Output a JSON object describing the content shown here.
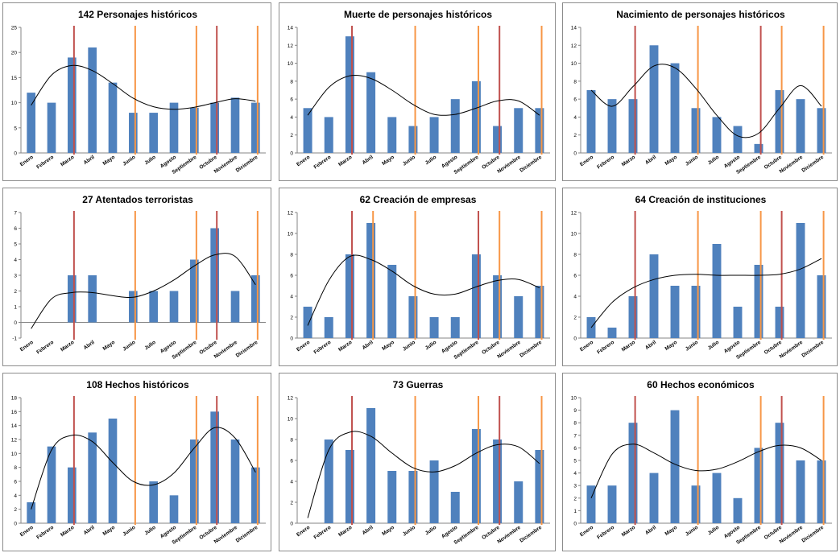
{
  "colors": {
    "bar": "#4f81bd",
    "trend": "#000000",
    "red_line": "#c0504d",
    "orange_line": "#f79646",
    "grid": "#bfbfbf"
  },
  "months": [
    "Enero",
    "Febrero",
    "Marzo",
    "Abril",
    "Mayo",
    "Junio",
    "Julio",
    "Agosto",
    "Septiembre",
    "Octubre",
    "Noviembre",
    "Diciembre"
  ],
  "chart_data": [
    {
      "type": "bar",
      "title": "142  Personajes históricos",
      "categories_ref": "months",
      "values": [
        12,
        10,
        19,
        21,
        14,
        8,
        8,
        10,
        9,
        10,
        11,
        10
      ],
      "ylim": [
        0,
        25
      ],
      "ystep": 5,
      "trendline": "polynomial",
      "trend": [
        9.5,
        15.5,
        17.4,
        16.4,
        13.8,
        10.9,
        9.2,
        8.7,
        9.1,
        10.0,
        10.8,
        10.3
      ],
      "red_markers": [
        2.6,
        9.6
      ],
      "orange_markers": [
        5.6,
        8.6,
        11.6
      ]
    },
    {
      "type": "bar",
      "title": "Muerte de personajes históricos",
      "categories_ref": "months",
      "values": [
        5,
        4,
        13,
        9,
        4,
        3,
        4,
        6,
        8,
        3,
        5,
        5
      ],
      "ylim": [
        0,
        14
      ],
      "ystep": 2,
      "trendline": "polynomial",
      "trend": [
        4.2,
        7.3,
        8.6,
        8.3,
        7.0,
        5.4,
        4.3,
        4.3,
        5.0,
        5.8,
        5.8,
        4.2
      ],
      "red_markers": [
        2.6,
        9.6
      ],
      "orange_markers": [
        5.6,
        8.6,
        11.6
      ]
    },
    {
      "type": "bar",
      "title": "Nacimiento de personajes históricos",
      "categories_ref": "months",
      "values": [
        7,
        6,
        6,
        12,
        10,
        5,
        4,
        3,
        1,
        7,
        6,
        5
      ],
      "ylim": [
        0,
        14
      ],
      "ystep": 2,
      "trendline": "polynomial",
      "trend": [
        7.0,
        5.2,
        7.4,
        9.7,
        9.5,
        7.2,
        4.2,
        1.9,
        2.2,
        5.0,
        7.5,
        5.2
      ],
      "red_markers": [
        2.6,
        8.6
      ],
      "orange_markers": [
        5.6,
        9.6,
        11.6
      ]
    },
    {
      "type": "bar",
      "title": "27  Atentados terroristas",
      "categories_ref": "months",
      "values": [
        0,
        0,
        3,
        3,
        0,
        2,
        2,
        2,
        4,
        6,
        2,
        3
      ],
      "ylim": [
        -1,
        7
      ],
      "ystep": 1,
      "trendline": "polynomial",
      "trend": [
        -0.4,
        1.5,
        1.9,
        1.9,
        1.7,
        1.6,
        2.0,
        2.7,
        3.6,
        4.3,
        4.2,
        2.4
      ],
      "red_markers": [
        2.6,
        9.6
      ],
      "orange_markers": [
        5.6,
        8.6,
        11.6
      ]
    },
    {
      "type": "bar",
      "title": "62  Creación de empresas",
      "categories_ref": "months",
      "values": [
        3,
        2,
        8,
        11,
        7,
        4,
        2,
        2,
        8,
        6,
        4,
        5
      ],
      "ylim": [
        0,
        12
      ],
      "ystep": 2,
      "trendline": "polynomial",
      "trend": [
        1.2,
        5.5,
        7.8,
        7.5,
        6.4,
        5.0,
        4.2,
        4.2,
        4.9,
        5.5,
        5.6,
        4.8
      ],
      "red_markers": [
        2.6,
        8.6
      ],
      "orange_markers": [
        3.6,
        5.6,
        9.6,
        11.6
      ]
    },
    {
      "type": "bar",
      "title": "64  Creación de instituciones",
      "categories_ref": "months",
      "values": [
        2,
        1,
        4,
        8,
        5,
        5,
        9,
        3,
        7,
        3,
        11,
        6
      ],
      "ylim": [
        0,
        12
      ],
      "ystep": 2,
      "trendline": "polynomial",
      "trend": [
        1.0,
        3.4,
        4.8,
        5.6,
        6.0,
        6.1,
        6.0,
        6.0,
        6.0,
        6.1,
        6.6,
        7.6
      ],
      "red_markers": [
        2.6,
        9.6
      ],
      "orange_markers": [
        5.6,
        8.6,
        11.6
      ]
    },
    {
      "type": "bar",
      "title": "108  Hechos históricos",
      "categories_ref": "months",
      "values": [
        3,
        11,
        8,
        13,
        15,
        0,
        6,
        4,
        12,
        16,
        12,
        8
      ],
      "ylim": [
        0,
        18
      ],
      "ystep": 2,
      "trendline": "polynomial",
      "trend": [
        2.0,
        10.5,
        12.6,
        11.7,
        8.7,
        6.0,
        5.5,
        7.2,
        10.8,
        13.7,
        12.2,
        7.3
      ],
      "red_markers": [
        2.6,
        9.6
      ],
      "orange_markers": [
        5.6,
        8.6,
        11.6
      ]
    },
    {
      "type": "bar",
      "title": "73  Guerras",
      "categories_ref": "months",
      "values": [
        0,
        8,
        7,
        11,
        5,
        5,
        6,
        3,
        9,
        8,
        4,
        7
      ],
      "ylim": [
        0,
        12
      ],
      "ystep": 2,
      "trendline": "polynomial",
      "trend": [
        0.5,
        7.0,
        8.7,
        8.3,
        6.7,
        5.3,
        4.9,
        5.5,
        6.7,
        7.5,
        7.3,
        5.7
      ],
      "red_markers": [
        2.6,
        9.6
      ],
      "orange_markers": [
        5.6,
        8.6,
        11.6
      ]
    },
    {
      "type": "bar",
      "title": "60  Hechos económicos",
      "categories_ref": "months",
      "values": [
        3,
        3,
        8,
        4,
        9,
        3,
        4,
        2,
        6,
        8,
        5,
        5
      ],
      "ylim": [
        0,
        10
      ],
      "ystep": 1,
      "trendline": "polynomial",
      "trend": [
        2.0,
        5.5,
        6.3,
        5.6,
        4.7,
        4.2,
        4.3,
        4.9,
        5.7,
        6.2,
        6.0,
        5.0
      ],
      "red_markers": [
        2.6,
        9.6
      ],
      "orange_markers": [
        5.6,
        8.6,
        11.6
      ]
    }
  ]
}
